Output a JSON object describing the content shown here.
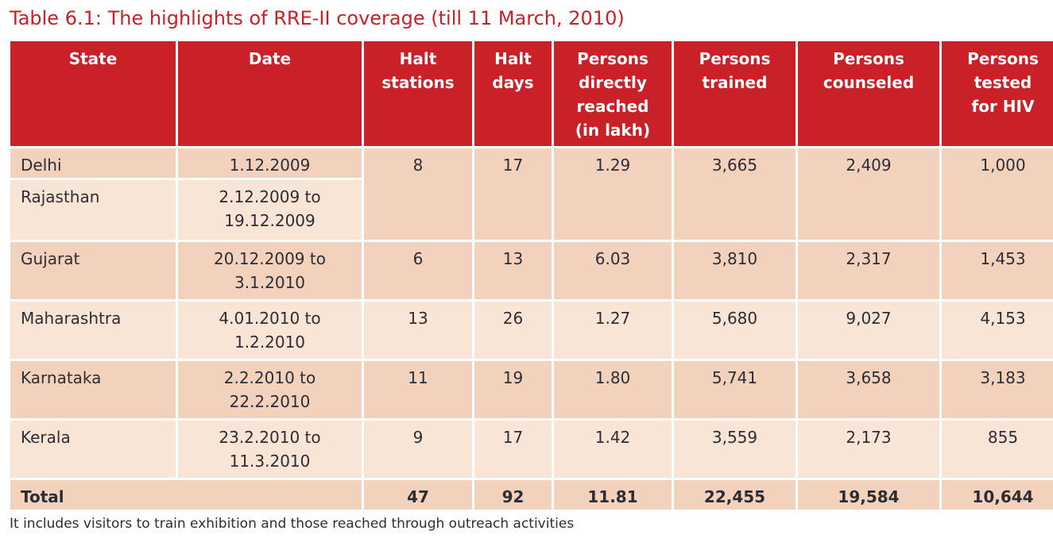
{
  "title": "Table 6.1: The highlights of RRE-II coverage (till 11 March, 2010)",
  "footnote": "It includes visitors to train exhibition and those reached through outreach activities",
  "colors": {
    "header_bg": "#ca2128",
    "title_color": "#cc1f26",
    "row_dark": "#f3d2bd",
    "row_light": "#f9e5d6",
    "text_color": "#2d2d33"
  },
  "table": {
    "headers": [
      "State",
      "Date",
      "Halt stations",
      "Halt days",
      "Persons directly reached (in lakh)",
      "Persons trained",
      "Persons counseled",
      "Persons tested for HIV"
    ],
    "rows": [
      {
        "state": "Delhi",
        "date": "1.12.2009",
        "halt_stations": "8",
        "halt_days": "17",
        "reached_lakh": "1.29",
        "trained": "3,665",
        "counseled": "2,409",
        "tested_hiv": "1,000"
      },
      {
        "state": "Rajasthan",
        "date": "2.12.2009 to 19.12.2009"
      },
      {
        "state": "Gujarat",
        "date": "20.12.2009 to 3.1.2010",
        "halt_stations": "6",
        "halt_days": "13",
        "reached_lakh": "6.03",
        "trained": "3,810",
        "counseled": "2,317",
        "tested_hiv": "1,453"
      },
      {
        "state": "Maharashtra",
        "date": "4.01.2010 to 1.2.2010",
        "halt_stations": "13",
        "halt_days": "26",
        "reached_lakh": "1.27",
        "trained": "5,680",
        "counseled": "9,027",
        "tested_hiv": "4,153"
      },
      {
        "state": "Karnataka",
        "date": "2.2.2010 to 22.2.2010",
        "halt_stations": "11",
        "halt_days": "19",
        "reached_lakh": "1.80",
        "trained": "5,741",
        "counseled": "3,658",
        "tested_hiv": "3,183"
      },
      {
        "state": "Kerala",
        "date": "23.2.2010 to 11.3.2010",
        "halt_stations": "9",
        "halt_days": "17",
        "reached_lakh": "1.42",
        "trained": "3,559",
        "counseled": "2,173",
        "tested_hiv": "855"
      }
    ],
    "total": {
      "label": "Total",
      "halt_stations": "47",
      "halt_days": "92",
      "reached_lakh": "11.81",
      "trained": "22,455",
      "counseled": "19,584",
      "tested_hiv": "10,644"
    }
  }
}
